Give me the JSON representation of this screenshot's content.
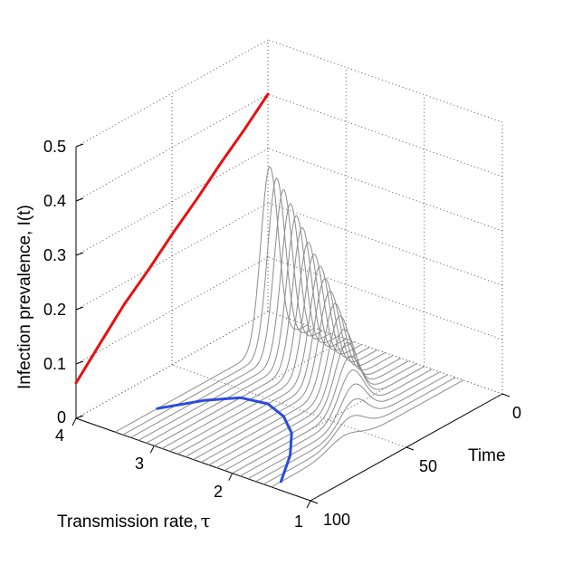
{
  "chart_data": {
    "type": "line",
    "projection": "3d",
    "xlabel": "Time",
    "ylabel_prefix": "Transmission rate,",
    "ylabel_symbol": "τ",
    "zlabel": "Infection prevalence, I(t)",
    "xlim": [
      0,
      100
    ],
    "ylim": [
      1,
      4
    ],
    "zlim": [
      0,
      0.5
    ],
    "xticks": [
      "0",
      "50",
      "100"
    ],
    "yticks": [
      "1",
      "2",
      "3",
      "4"
    ],
    "zticks": [
      "0",
      "0.1",
      "0.2",
      "0.3",
      "0.4",
      "0.5"
    ],
    "grid": true,
    "gray_curves": {
      "tau_values": [
        1.5,
        1.6,
        1.7,
        1.8,
        1.9,
        2.0,
        2.1,
        2.2,
        2.3,
        2.4,
        2.5,
        2.6,
        2.7,
        2.8,
        2.9,
        3.0,
        3.1,
        3.2,
        3.3,
        3.4,
        3.5
      ],
      "peak_prevalence": [
        0.02,
        0.035,
        0.05,
        0.065,
        0.08,
        0.095,
        0.11,
        0.125,
        0.14,
        0.155,
        0.17,
        0.185,
        0.2,
        0.215,
        0.23,
        0.25,
        0.265,
        0.28,
        0.3,
        0.315,
        0.33
      ],
      "peak_time": [
        62,
        55,
        49,
        45,
        42,
        39,
        36.5,
        34,
        32,
        30.5,
        29,
        27.5,
        26,
        25,
        24,
        23,
        22,
        21,
        20.5,
        20,
        19.5
      ],
      "color": "#8c8c8c"
    },
    "blue_curve": {
      "tau": [
        1.5,
        1.8,
        2.1,
        2.4,
        2.7,
        3.0,
        3.25,
        3.5
      ],
      "time": [
        95,
        78,
        65,
        57,
        53,
        55,
        64,
        78
      ],
      "prevalence": [
        0,
        0,
        0,
        0,
        0,
        0,
        0,
        0
      ],
      "color": "#2b4bdb"
    },
    "red_curve": {
      "tau": [
        4,
        4,
        4,
        4,
        4,
        4,
        4,
        4,
        4
      ],
      "time": [
        0,
        12,
        25,
        37,
        50,
        62,
        75,
        87,
        100
      ],
      "prevalence": [
        0.4,
        0.36,
        0.32,
        0.28,
        0.24,
        0.2,
        0.16,
        0.115,
        0.065
      ],
      "color": "#e81010"
    }
  }
}
